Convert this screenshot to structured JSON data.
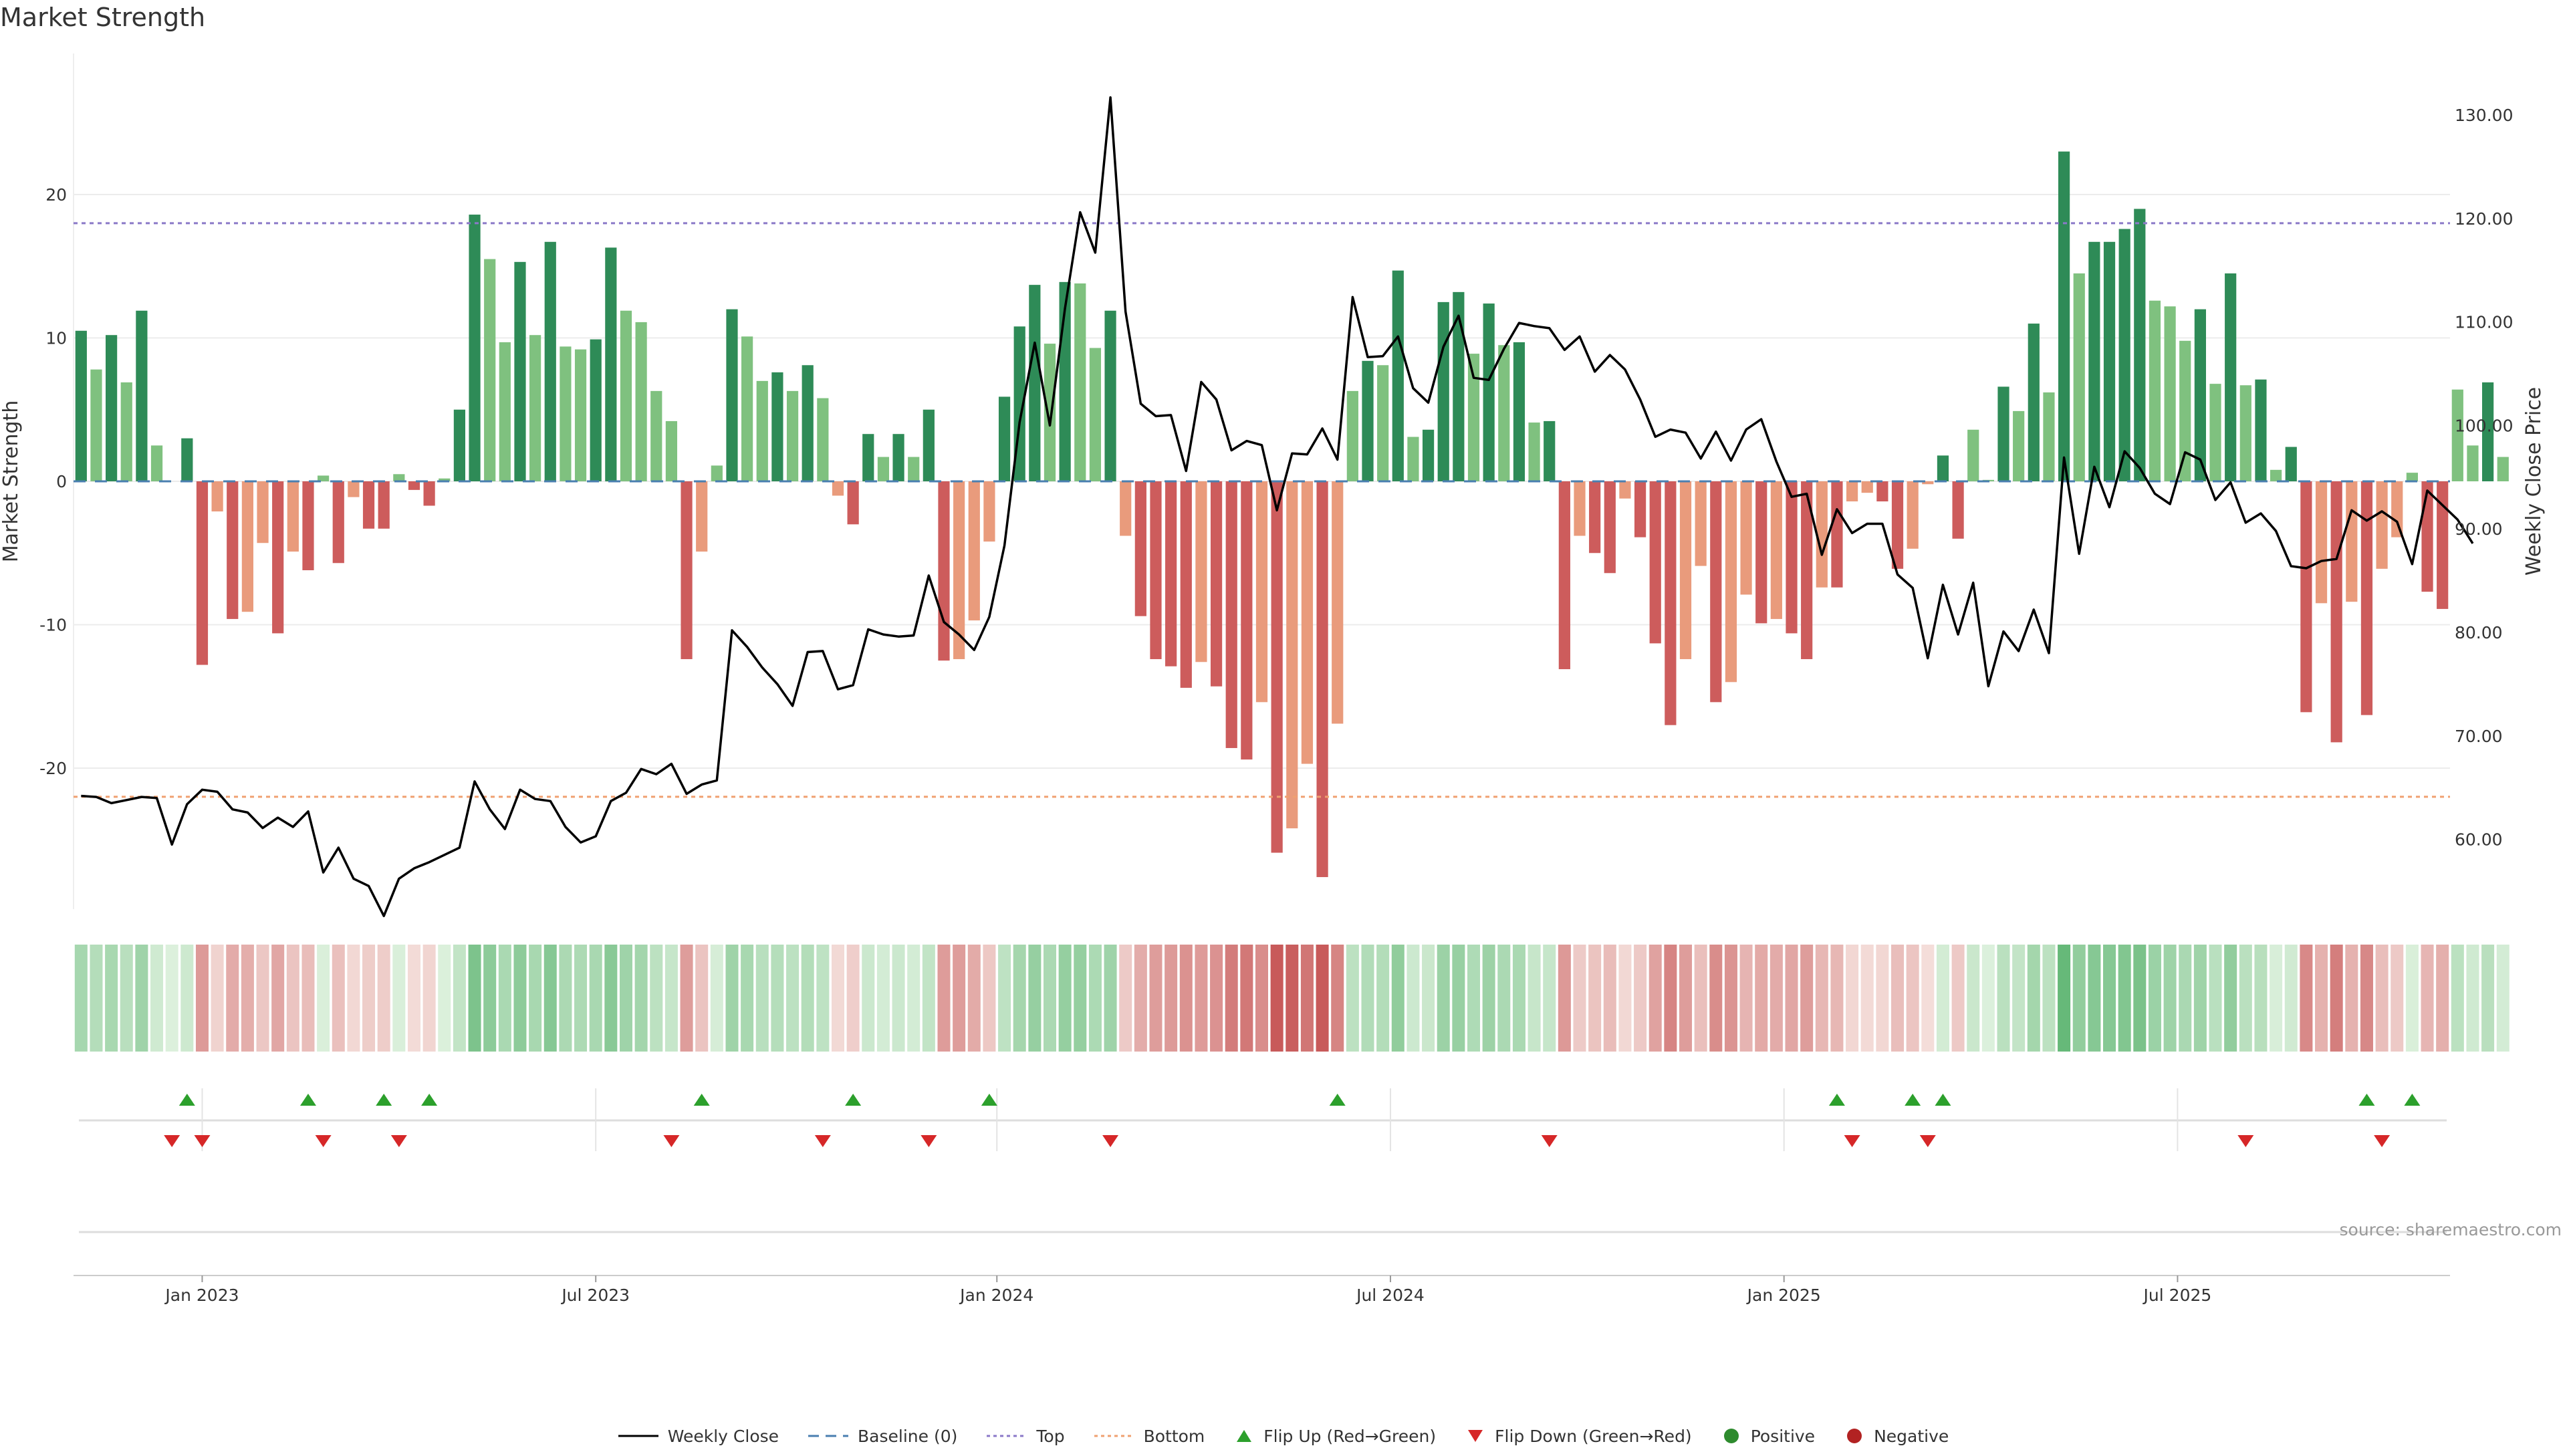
{
  "title": "Market Strength",
  "source_text": "source: sharemaestro.com",
  "legend": [
    {
      "key": "weekly_close",
      "label": "Weekly Close",
      "icon": "line-icon",
      "color": "#000000"
    },
    {
      "key": "baseline",
      "label": "Baseline (0)",
      "icon": "dashed-line-icon",
      "color": "#4a7fb0"
    },
    {
      "key": "top",
      "label": "Top",
      "icon": "dotted-line-icon",
      "color": "#8b79c8"
    },
    {
      "key": "bottom",
      "label": "Bottom",
      "icon": "dotted-line-icon",
      "color": "#f0a070"
    },
    {
      "key": "flip_up",
      "label": "Flip Up (Red→Green)",
      "icon": "triangle-up-icon",
      "color": "#2ca02c"
    },
    {
      "key": "flip_down",
      "label": "Flip Down (Green→Red)",
      "icon": "triangle-down-icon",
      "color": "#d62728"
    },
    {
      "key": "positive",
      "label": "Positive",
      "icon": "circle-icon",
      "color": "#2e8b2e"
    },
    {
      "key": "negative",
      "label": "Negative",
      "icon": "circle-icon",
      "color": "#b22222"
    }
  ],
  "colors": {
    "pos_strong": "#2e8b57",
    "pos_light": "#7fc17f",
    "neg_strong": "#cd5c5c",
    "neg_light": "#e99b7c",
    "price_line": "#000000",
    "baseline": "#4a7fb0",
    "top": "#8b79c8",
    "bottom": "#f0a070",
    "flip_up": "#2ca02c",
    "flip_down": "#d62728"
  },
  "chart_data": {
    "type": "bar",
    "title": "Market Strength",
    "ylabel": "Market Strength",
    "y2label": "Weekly Close Price",
    "ylim": [
      -30,
      30
    ],
    "y2lim": [
      52,
      134
    ],
    "yticks": [
      20,
      10,
      0,
      -10,
      -20
    ],
    "y2ticks": [
      130.0,
      120.0,
      110.0,
      100.0,
      90.0,
      80.0,
      70.0,
      60.0
    ],
    "top_level": 18,
    "bottom_level": -22,
    "x_ticks": [
      {
        "label": "Jan 2023",
        "week": 8
      },
      {
        "label": "Jul 2023",
        "week": 34
      },
      {
        "label": "Jan 2024",
        "week": 60.5
      },
      {
        "label": "Jul 2024",
        "week": 86.5
      },
      {
        "label": "Jan 2025",
        "week": 112.5
      },
      {
        "label": "Jul 2025",
        "week": 138.5
      }
    ],
    "series": [
      {
        "name": "Market Strength",
        "values": [
          10.5,
          7.8,
          10.2,
          6.9,
          11.9,
          2.5,
          0,
          3,
          -12.8,
          -2.1,
          -9.6,
          -9.1,
          -4.3,
          -10.6,
          -4.9,
          -6.2,
          0.4,
          -5.7,
          -1.1,
          -3.3,
          -3.3,
          0.5,
          -0.6,
          -1.7,
          0.2,
          5,
          18.6,
          15.5,
          9.7,
          15.3,
          10.2,
          16.7,
          9.4,
          9.2,
          9.9,
          16.3,
          11.9,
          11.1,
          6.3,
          4.2,
          -12.4,
          -4.9,
          1.1,
          12,
          10.1,
          7,
          7.6,
          6.3,
          8.1,
          5.8,
          -1,
          -3,
          3.3,
          1.7,
          3.3,
          1.7,
          5,
          -12.5,
          -12.4,
          -9.7,
          -4.2,
          5.9,
          10.8,
          13.7,
          9.6,
          13.9,
          13.8,
          9.3,
          11.9,
          -3.8,
          -9.4,
          -12.4,
          -12.9,
          -14.4,
          -12.6,
          -14.3,
          -18.6,
          -19.4,
          -15.4,
          -25.9,
          -24.2,
          -19.7,
          -27.6,
          -16.9,
          6.3,
          8.4,
          8.1,
          14.7,
          3.1,
          3.6,
          12.5,
          13.2,
          8.9,
          12.4,
          9.5,
          9.7,
          4.1,
          4.2,
          -13.1,
          -3.8,
          -5,
          -6.4,
          -1.2,
          -3.9,
          -11.3,
          -17,
          -12.4,
          -5.9,
          -15.4,
          -14,
          -7.9,
          -9.9,
          -9.6,
          -10.6,
          -12.4,
          -7.4,
          -7.4,
          -1.4,
          -0.8,
          -1.4,
          -6.1,
          -4.7,
          -0.2,
          1.8,
          -4,
          3.6,
          0.1,
          6.6,
          4.9,
          11,
          6.2,
          23,
          14.5,
          16.7,
          16.7,
          17.6,
          19,
          12.6,
          12.2,
          9.8,
          12,
          6.8,
          14.5,
          6.7,
          7.1,
          0.8,
          2.4,
          -16.1,
          -8.5,
          -18.2,
          -8.4,
          -16.3,
          -6.1,
          -3.9,
          0.6,
          -7.7,
          -8.9,
          6.4,
          2.5,
          6.9,
          1.7
        ]
      },
      {
        "name": "Weekly Close",
        "values": [
          64.2,
          64.1,
          63.5,
          63.8,
          64.1,
          64.0,
          59.5,
          63.4,
          64.8,
          64.6,
          62.9,
          62.6,
          61.1,
          62.1,
          61.2,
          62.7,
          56.8,
          59.2,
          56.2,
          55.5,
          52.6,
          56.2,
          57.2,
          57.8,
          58.5,
          59.2,
          65.6,
          62.9,
          61.0,
          64.8,
          63.9,
          63.7,
          61.2,
          59.7,
          60.3,
          63.7,
          64.5,
          66.8,
          66.3,
          67.3,
          64.4,
          65.3,
          65.7,
          80.2,
          78.6,
          76.6,
          75.0,
          72.9,
          78.1,
          78.2,
          74.5,
          74.9,
          80.3,
          79.8,
          79.6,
          79.7,
          85.5,
          81.0,
          79.8,
          78.3,
          81.5,
          88.4,
          100.3,
          108.0,
          100.0,
          111.3,
          120.6,
          116.7,
          131.7,
          111.0,
          102.1,
          100.9,
          101.0,
          95.6,
          104.2,
          102.5,
          97.6,
          98.5,
          98.1,
          91.8,
          97.3,
          97.2,
          99.7,
          96.7,
          112.4,
          106.6,
          106.7,
          108.6,
          103.6,
          102.2,
          107.6,
          110.6,
          104.6,
          104.4,
          107.4,
          109.9,
          109.6,
          109.4,
          107.3,
          108.6,
          105.2,
          106.8,
          105.4,
          102.5,
          98.9,
          99.6,
          99.3,
          96.8,
          99.4,
          96.6,
          99.6,
          100.6,
          96.5,
          93.1,
          93.4,
          87.5,
          91.9,
          89.6,
          90.5,
          90.5,
          85.6,
          84.3,
          77.5,
          84.6,
          79.8,
          84.8,
          74.8,
          80.1,
          78.2,
          82.2,
          78.0,
          96.9,
          87.6,
          96.0,
          92.1,
          97.5,
          95.9,
          93.4,
          92.4,
          97.4,
          96.7,
          92.8,
          94.5,
          90.6,
          91.5,
          89.8,
          86.4,
          86.2,
          86.9,
          87.1,
          91.8,
          90.8,
          91.7,
          90.7,
          86.6,
          93.7,
          92.3,
          90.9,
          88.6
        ]
      }
    ],
    "flip_up_weeks": [
      7,
      15,
      20,
      23,
      41,
      51,
      60,
      83,
      116,
      121,
      123,
      151,
      154
    ],
    "flip_down_weeks": [
      6,
      8,
      16,
      21,
      39,
      49,
      56,
      68,
      97,
      117,
      122,
      143,
      152
    ],
    "heat_strip": "weekly strength color band",
    "weeks": 157
  }
}
